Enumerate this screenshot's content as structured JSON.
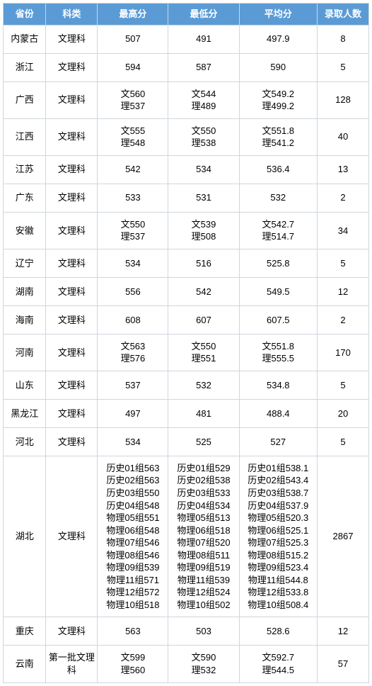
{
  "headers": [
    "省份",
    "科类",
    "最高分",
    "最低分",
    "平均分",
    "录取人数"
  ],
  "rows": [
    {
      "prov": "内蒙古",
      "cat": "文理科",
      "max": [
        "507"
      ],
      "min": [
        "491"
      ],
      "avg": [
        "497.9"
      ],
      "count": "8"
    },
    {
      "prov": "浙江",
      "cat": "文理科",
      "max": [
        "594"
      ],
      "min": [
        "587"
      ],
      "avg": [
        "590"
      ],
      "count": "5"
    },
    {
      "prov": "广西",
      "cat": "文理科",
      "max": [
        "文560",
        "理537"
      ],
      "min": [
        "文544",
        "理489"
      ],
      "avg": [
        "文549.2",
        "理499.2"
      ],
      "count": "128"
    },
    {
      "prov": "江西",
      "cat": "文理科",
      "max": [
        "文555",
        "理548"
      ],
      "min": [
        "文550",
        "理538"
      ],
      "avg": [
        "文551.8",
        "理541.2"
      ],
      "count": "40"
    },
    {
      "prov": "江苏",
      "cat": "文理科",
      "max": [
        "542"
      ],
      "min": [
        "534"
      ],
      "avg": [
        "536.4"
      ],
      "count": "13"
    },
    {
      "prov": "广东",
      "cat": "文理科",
      "max": [
        "533"
      ],
      "min": [
        "531"
      ],
      "avg": [
        "532"
      ],
      "count": "2"
    },
    {
      "prov": "安徽",
      "cat": "文理科",
      "max": [
        "文550",
        "理537"
      ],
      "min": [
        "文539",
        "理508"
      ],
      "avg": [
        "文542.7",
        "理514.7"
      ],
      "count": "34"
    },
    {
      "prov": "辽宁",
      "cat": "文理科",
      "max": [
        "534"
      ],
      "min": [
        "516"
      ],
      "avg": [
        "525.8"
      ],
      "count": "5"
    },
    {
      "prov": "湖南",
      "cat": "文理科",
      "max": [
        "556"
      ],
      "min": [
        "542"
      ],
      "avg": [
        "549.5"
      ],
      "count": "12"
    },
    {
      "prov": "海南",
      "cat": "文理科",
      "max": [
        "608"
      ],
      "min": [
        "607"
      ],
      "avg": [
        "607.5"
      ],
      "count": "2"
    },
    {
      "prov": "河南",
      "cat": "文理科",
      "max": [
        "文563",
        "理576"
      ],
      "min": [
        "文550",
        "理551"
      ],
      "avg": [
        "文551.8",
        "理555.5"
      ],
      "count": "170"
    },
    {
      "prov": "山东",
      "cat": "文理科",
      "max": [
        "537"
      ],
      "min": [
        "532"
      ],
      "avg": [
        "534.8"
      ],
      "count": "5"
    },
    {
      "prov": "黑龙江",
      "cat": "文理科",
      "max": [
        "497"
      ],
      "min": [
        "481"
      ],
      "avg": [
        "488.4"
      ],
      "count": "20"
    },
    {
      "prov": "河北",
      "cat": "文理科",
      "max": [
        "534"
      ],
      "min": [
        "525"
      ],
      "avg": [
        "527"
      ],
      "count": "5"
    },
    {
      "prov": "湖北",
      "cat": "文理科",
      "max": [
        "历史01组563",
        "历史02组563",
        "历史03组550",
        "历史04组548",
        "物理05组551",
        "物理06组548",
        "物理07组546",
        "物理08组546",
        "物理09组539",
        "物理11组571",
        "物理12组572",
        "物理10组518"
      ],
      "min": [
        "历史01组529",
        "历史02组538",
        "历史03组533",
        "历史04组534",
        "物理05组513",
        "物理06组518",
        "物理07组520",
        "物理08组511",
        "物理09组519",
        "物理11组539",
        "物理12组524",
        "物理10组502"
      ],
      "avg": [
        "历史01组538.1",
        "历史02组543.4",
        "历史03组538.7",
        "历史04组537.9",
        "物理05组520.3",
        "物理06组525.1",
        "物理07组525.3",
        "物理08组515.2",
        "物理09组523.4",
        "物理11组544.8",
        "物理12组533.8",
        "物理10组508.4"
      ],
      "count": "2867"
    },
    {
      "prov": "重庆",
      "cat": "文理科",
      "max": [
        "563"
      ],
      "min": [
        "503"
      ],
      "avg": [
        "528.6"
      ],
      "count": "12"
    },
    {
      "prov": "云南",
      "cat": "第一批文理科",
      "max": [
        "文599",
        "理560"
      ],
      "min": [
        "文590",
        "理532"
      ],
      "avg": [
        "文592.7",
        "理544.5"
      ],
      "count": "57"
    }
  ],
  "style": {
    "header_bg": "#5b9bd5",
    "header_fg": "#ffffff",
    "border": "#cfd6df",
    "body_fg": "#333333",
    "font_size": 13
  }
}
